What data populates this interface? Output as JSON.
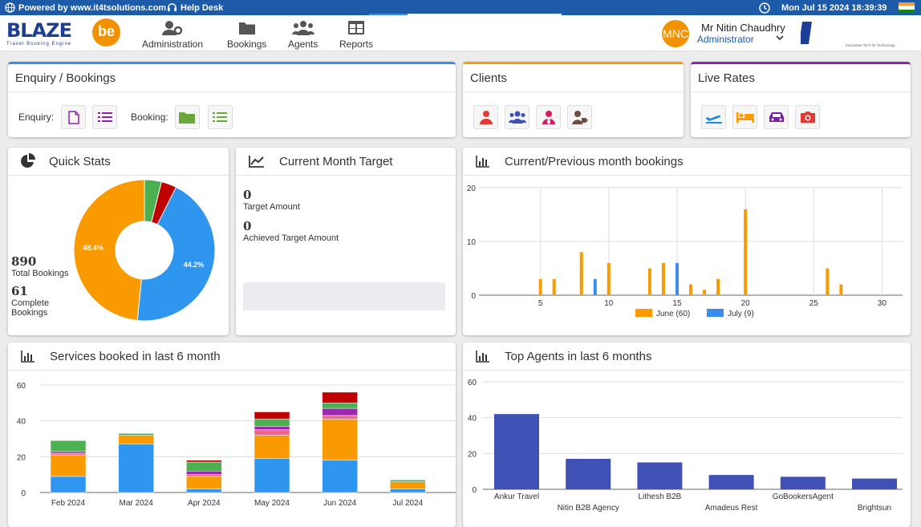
{
  "topbar": {
    "powered": "Powered by www.it4tsolutions.com",
    "help": "Help Desk",
    "datetime": "Mon Jul 15 2024 18:39:39"
  },
  "brand": {
    "logo_word": "BLAZE",
    "logo_be": "be",
    "tagline": "Travel Booking Engine",
    "partner": "IT4T Solutions",
    "partner_tag": "Innovative Tech for Technology"
  },
  "nav": [
    {
      "label": "Administration",
      "icon": "user-gear-icon"
    },
    {
      "label": "Bookings",
      "icon": "folder-icon"
    },
    {
      "label": "Agents",
      "icon": "users-icon"
    },
    {
      "label": "Reports",
      "icon": "table-icon"
    }
  ],
  "user": {
    "initials": "MNC",
    "name": "Mr Nitin Chaudhry",
    "role": "Administrator"
  },
  "enquiry": {
    "title": "Enquiry / Bookings",
    "enquiry_label": "Enquiry:",
    "booking_label": "Booking:"
  },
  "clients": {
    "title": "Clients"
  },
  "live_rates": {
    "title": "Live Rates"
  },
  "quick_stats": {
    "title": "Quick Stats",
    "total_value": "890",
    "total_label": "Total Bookings",
    "complete_value": "61",
    "complete_label": "Complete Bookings",
    "pct_blue": "44.2%",
    "pct_orange": "48.4%"
  },
  "target": {
    "title": "Current Month Target",
    "target_value": "0",
    "target_label": "Target Amount",
    "achieved_value": "0",
    "achieved_label": "Achieved Target Amount"
  },
  "bookings_chart": {
    "title": "Current/Previous month bookings"
  },
  "services_chart": {
    "title": "Services booked in last 6 month"
  },
  "agents_chart": {
    "title": "Top Agents in last 6 months"
  },
  "chart_data": [
    {
      "type": "donut",
      "values": [
        44.2,
        48.4,
        3.9,
        3.5
      ],
      "labels": [
        "44.2%",
        "48.4%",
        "",
        ""
      ],
      "colors": [
        "#2f96f0",
        "#f99a00",
        "#4caf50",
        "#c00000"
      ]
    },
    {
      "type": "bar",
      "xlim": [
        1,
        31
      ],
      "ylim": [
        0,
        20
      ],
      "xticks": [
        5,
        10,
        15,
        20,
        25,
        30
      ],
      "yticks": [
        0,
        10,
        20
      ],
      "series": [
        {
          "name": "June (60)",
          "color": "#f99a00",
          "x": [
            5,
            6,
            8,
            10,
            13,
            14,
            16,
            17,
            18,
            20,
            26,
            27
          ],
          "values": [
            3,
            3,
            8,
            6,
            5,
            6,
            2,
            1,
            3,
            16,
            5,
            2
          ]
        },
        {
          "name": "July (9)",
          "color": "#3b8ded",
          "x": [
            9,
            15
          ],
          "values": [
            3,
            6
          ]
        }
      ]
    },
    {
      "type": "bar",
      "stacked": true,
      "categories": [
        "Feb 2024",
        "Mar 2024",
        "Apr 2024",
        "May 2024",
        "Jun 2024",
        "Jul 2024"
      ],
      "ylim": [
        0,
        60
      ],
      "yticks": [
        0,
        20,
        40,
        60
      ],
      "series": [
        {
          "color": "#2f96f0",
          "values": [
            9,
            27,
            2,
            19,
            18,
            2
          ]
        },
        {
          "color": "#f99a00",
          "values": [
            12,
            5,
            7,
            13,
            23,
            4
          ]
        },
        {
          "color": "#f06292",
          "values": [
            1,
            0,
            1,
            3,
            2,
            0
          ]
        },
        {
          "color": "#9c27b0",
          "values": [
            1,
            0,
            2,
            2,
            4,
            0
          ]
        },
        {
          "color": "#4caf50",
          "values": [
            6,
            1,
            5,
            4,
            3,
            1
          ]
        },
        {
          "color": "#c00000",
          "values": [
            0,
            0,
            1,
            4,
            6,
            0
          ]
        }
      ]
    },
    {
      "type": "bar",
      "categories": [
        "Ankur Travel",
        "Nitin B2B Agency",
        "Lithesh B2B",
        "Amadeus Rest",
        "GoBookersAgent",
        "Brightsun"
      ],
      "values": [
        42,
        17,
        15,
        8,
        7,
        6
      ],
      "ylim": [
        0,
        60
      ],
      "yticks": [
        0,
        20,
        40,
        60
      ],
      "color": "#3f51b5"
    }
  ],
  "colors": {
    "primary": "#1d5aa8",
    "accent": "#f39200"
  }
}
